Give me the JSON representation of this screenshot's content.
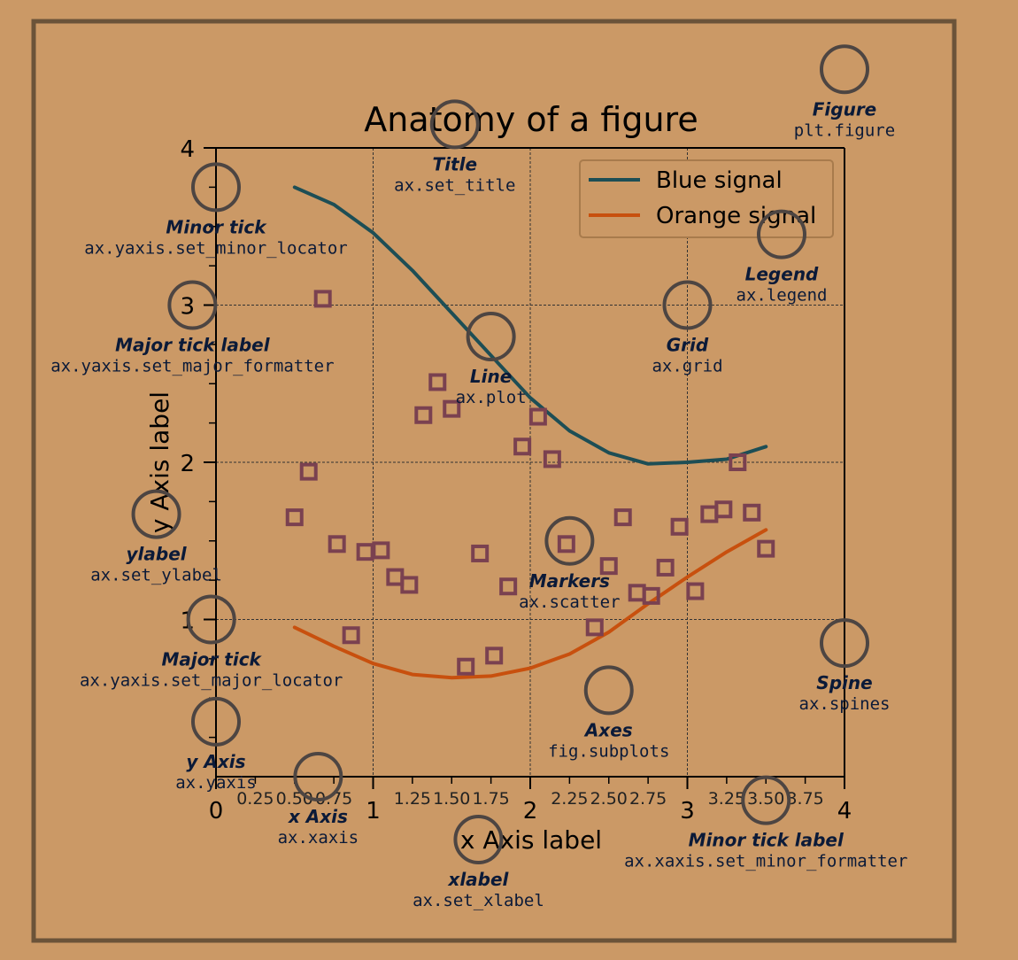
{
  "colors": {
    "background": "#cb9966",
    "frame": "#6b5339",
    "annotation_circle": "#4d4542",
    "annotation_label": "#0b1a38",
    "blue_signal": "#1d4e55",
    "orange_signal": "#c8500e",
    "markers": "#7a4150",
    "grid": "#333333",
    "axes": "#000000"
  },
  "chart_data": {
    "type": "line",
    "title": "Anatomy of a figure",
    "xlabel": "x Axis label",
    "ylabel": "y Axis label",
    "xlim": [
      0,
      4
    ],
    "ylim": [
      0,
      4
    ],
    "grid": true,
    "legend_position": "top-right",
    "x_major_ticks": [
      0,
      1,
      2,
      3,
      4
    ],
    "x_major_tick_labels": [
      "0",
      "1",
      "2",
      "3",
      "4"
    ],
    "x_minor_ticks": [
      0.25,
      0.5,
      0.75,
      1.25,
      1.5,
      1.75,
      2.25,
      2.5,
      2.75,
      3.25,
      3.5,
      3.75
    ],
    "x_minor_tick_labels": [
      "0.25",
      "0.50",
      "0.75",
      "1.25",
      "1.50",
      "1.75",
      "2.25",
      "2.50",
      "2.75",
      "3.25",
      "3.50",
      "3.75"
    ],
    "y_major_ticks": [
      1,
      2,
      3,
      4
    ],
    "y_major_tick_labels": [
      "1",
      "2",
      "3",
      "4"
    ],
    "y_minor_ticks": [
      0.25,
      0.5,
      0.75,
      1.25,
      1.5,
      1.75,
      2.25,
      2.5,
      2.75,
      3.25,
      3.5,
      3.75
    ],
    "series": [
      {
        "name": "Blue signal",
        "kind": "line",
        "x": [
          0.5,
          0.75,
          1.0,
          1.25,
          1.5,
          1.75,
          2.0,
          2.25,
          2.5,
          2.75,
          3.0,
          3.25,
          3.5
        ],
        "y": [
          3.75,
          3.64,
          3.46,
          3.22,
          2.95,
          2.68,
          2.41,
          2.2,
          2.06,
          1.99,
          2.0,
          2.02,
          2.1
        ]
      },
      {
        "name": "Orange signal",
        "kind": "line",
        "x": [
          0.5,
          0.75,
          1.0,
          1.25,
          1.5,
          1.75,
          2.0,
          2.25,
          2.5,
          2.75,
          3.0,
          3.25,
          3.5
        ],
        "y": [
          0.95,
          0.83,
          0.72,
          0.65,
          0.63,
          0.64,
          0.69,
          0.78,
          0.92,
          1.1,
          1.27,
          1.43,
          1.57
        ]
      },
      {
        "kind": "scatter",
        "x": [
          0.68,
          0.5,
          0.59,
          0.77,
          0.95,
          1.14,
          1.05,
          1.23,
          1.41,
          1.32,
          1.5,
          1.68,
          1.86,
          2.05,
          1.95,
          2.14,
          2.23,
          2.41,
          2.5,
          2.59,
          2.68,
          2.77,
          2.86,
          2.95,
          3.05,
          3.14,
          3.23,
          3.32,
          3.41,
          3.5,
          0.86,
          1.59,
          1.77
        ],
        "y": [
          3.04,
          1.65,
          1.94,
          1.48,
          1.43,
          1.27,
          1.44,
          1.22,
          2.51,
          2.3,
          2.34,
          1.42,
          1.21,
          2.29,
          2.1,
          2.02,
          1.48,
          0.95,
          1.34,
          1.65,
          1.17,
          1.15,
          1.33,
          1.59,
          1.18,
          1.67,
          1.7,
          2.0,
          1.68,
          1.45,
          0.9,
          0.7,
          0.77
        ]
      }
    ]
  },
  "annotations": [
    {
      "id": "minor-tick",
      "title": "Minor tick",
      "code": "ax.yaxis.set_minor_locator",
      "x": 0,
      "y": 3.75
    },
    {
      "id": "major-tick-label",
      "title": "Major tick label",
      "code": "ax.yaxis.set_major_formatter",
      "x": -0.15,
      "y": 3.0
    },
    {
      "id": "major-tick",
      "title": "Major tick",
      "code": "ax.yaxis.set_major_locator",
      "x": -0.03,
      "y": 1.0
    },
    {
      "id": "minor-tick-label",
      "title": "Minor tick label",
      "code": "ax.xaxis.set_minor_formatter",
      "x": 3.5,
      "y": -0.15
    },
    {
      "id": "y-axis",
      "title": "y Axis",
      "code": "ax.yaxis",
      "x": 0,
      "y": 0.35
    },
    {
      "id": "x-axis",
      "title": "x Axis",
      "code": "ax.xaxis",
      "x": 0.65,
      "y": 0.0
    },
    {
      "id": "title",
      "title": "Title",
      "code": "ax.set_title",
      "x": 1.52,
      "y": 4.15
    },
    {
      "id": "figure",
      "title": "Figure",
      "code": "plt.figure",
      "x": 4.0,
      "y": 4.5
    },
    {
      "id": "legend",
      "title": "Legend",
      "code": "ax.legend",
      "x": 3.6,
      "y": 3.45
    },
    {
      "id": "grid",
      "title": "Grid",
      "code": "ax.grid",
      "x": 3.0,
      "y": 3.0
    },
    {
      "id": "line",
      "title": "Line",
      "code": "ax.plot",
      "x": 1.75,
      "y": 2.8
    },
    {
      "id": "markers",
      "title": "Markers",
      "code": "ax.scatter",
      "x": 2.25,
      "y": 1.5
    },
    {
      "id": "ylabel",
      "title": "ylabel",
      "code": "ax.set_ylabel",
      "x": -0.38,
      "y": 1.67
    },
    {
      "id": "xlabel",
      "title": "xlabel",
      "code": "ax.set_xlabel",
      "x": 1.67,
      "y": -0.4
    },
    {
      "id": "axes",
      "title": "Axes",
      "code": "fig.subplots",
      "x": 2.5,
      "y": 0.55
    },
    {
      "id": "spine",
      "title": "Spine",
      "code": "ax.spines",
      "x": 4.0,
      "y": 0.85
    }
  ]
}
